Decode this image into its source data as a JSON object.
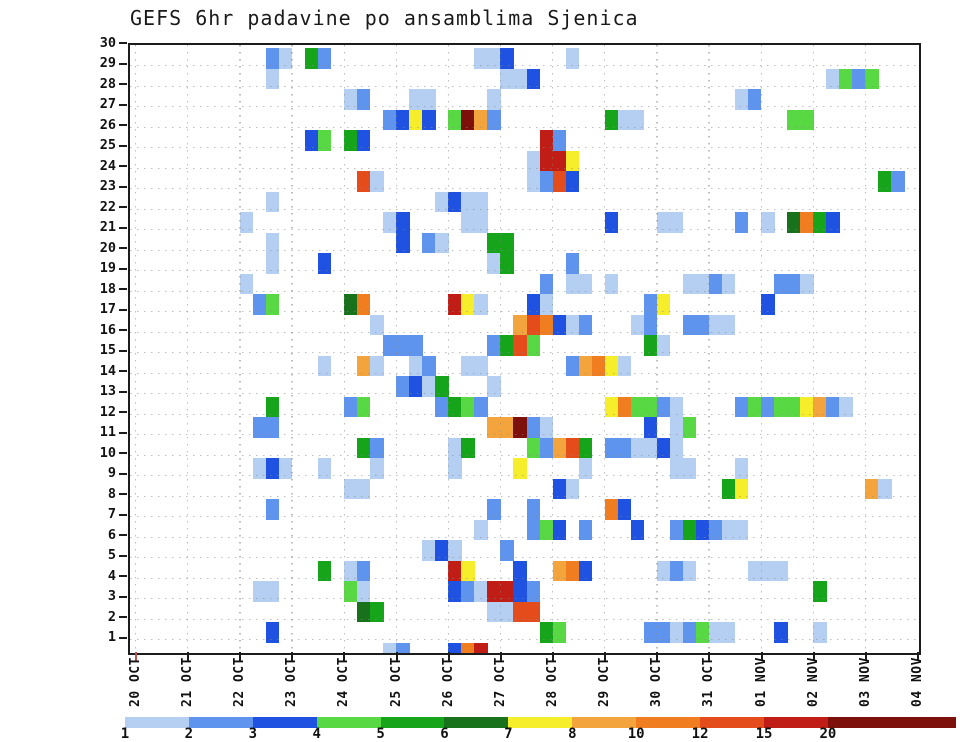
{
  "title": "GEFS 6hr padavine po ansamblima Sjenica",
  "chart_data": {
    "type": "heatmap",
    "title": "GEFS 6hr padavine po ansamblima Sjenica",
    "x_axis": {
      "tick_labels": [
        "20 OCT",
        "21 OCT",
        "22 OCT",
        "23 OCT",
        "24 OCT",
        "25 OCT",
        "26 OCT",
        "27 OCT",
        "28 OCT",
        "29 OCT",
        "30 OCT",
        "31 OCT",
        "01 NOV",
        "02 NOV",
        "03 NOV",
        "04 NOV"
      ],
      "steps_per_day": 4,
      "first_tick_color": "#c0504d",
      "tick_color": "#1c1c1c"
    },
    "y_axis": {
      "member_labels": [
        "30",
        "29",
        "28",
        "27",
        "26",
        "25",
        "24",
        "23",
        "22",
        "21",
        "20",
        "19",
        "18",
        "17",
        "16",
        "15",
        "14",
        "13",
        "12",
        "11",
        "10",
        "9",
        "8",
        "7",
        "6",
        "5",
        "4",
        "3",
        "2",
        "1"
      ]
    },
    "grid": true,
    "legend_position": "bottom",
    "colorbar": {
      "boundary_labels": [
        "1",
        "2",
        "3",
        "4",
        "5",
        "6",
        "7",
        "8",
        "10",
        "12",
        "15",
        "20"
      ],
      "segment_levels": [
        1,
        2,
        3,
        4,
        5,
        6,
        7,
        8,
        10,
        12,
        15,
        20
      ],
      "last_segment_wide": true
    },
    "level_colors": {
      "1": "#b4cff1",
      "2": "#5f94ee",
      "3": "#1f52e0",
      "4": "#58d943",
      "5": "#16a51a",
      "6": "#17721b",
      "7": "#f6ee2b",
      "8": "#f4a43c",
      "10": "#f07d20",
      "12": "#e44d1b",
      "15": "#c01d16",
      "20": "#7d100b"
    },
    "cells": [
      [
        30,
        10,
        2
      ],
      [
        30,
        11,
        1
      ],
      [
        30,
        13,
        5
      ],
      [
        30,
        14,
        2
      ],
      [
        30,
        26,
        1
      ],
      [
        30,
        27,
        1
      ],
      [
        30,
        28,
        3
      ],
      [
        30,
        33,
        1
      ],
      [
        29,
        10,
        1
      ],
      [
        29,
        28,
        1
      ],
      [
        29,
        29,
        1
      ],
      [
        29,
        30,
        3
      ],
      [
        29,
        53,
        1
      ],
      [
        29,
        54,
        4
      ],
      [
        29,
        55,
        2
      ],
      [
        29,
        56,
        4
      ],
      [
        28,
        16,
        1
      ],
      [
        28,
        17,
        2
      ],
      [
        28,
        21,
        1
      ],
      [
        28,
        22,
        1
      ],
      [
        28,
        27,
        1
      ],
      [
        28,
        46,
        1
      ],
      [
        28,
        47,
        2
      ],
      [
        27,
        19,
        2
      ],
      [
        27,
        20,
        3
      ],
      [
        27,
        21,
        7
      ],
      [
        27,
        22,
        3
      ],
      [
        27,
        24,
        4
      ],
      [
        27,
        25,
        20
      ],
      [
        27,
        26,
        8
      ],
      [
        27,
        27,
        2
      ],
      [
        27,
        36,
        5
      ],
      [
        27,
        37,
        1
      ],
      [
        27,
        38,
        1
      ],
      [
        27,
        50,
        4
      ],
      [
        27,
        51,
        4
      ],
      [
        26,
        13,
        3
      ],
      [
        26,
        14,
        4
      ],
      [
        26,
        16,
        5
      ],
      [
        26,
        17,
        3
      ],
      [
        26,
        31,
        15
      ],
      [
        26,
        32,
        2
      ],
      [
        25,
        30,
        1
      ],
      [
        25,
        31,
        15
      ],
      [
        25,
        32,
        15
      ],
      [
        25,
        33,
        7
      ],
      [
        24,
        17,
        12
      ],
      [
        24,
        18,
        1
      ],
      [
        24,
        30,
        1
      ],
      [
        24,
        31,
        2
      ],
      [
        24,
        32,
        12
      ],
      [
        24,
        33,
        3
      ],
      [
        24,
        57,
        5
      ],
      [
        24,
        58,
        2
      ],
      [
        23,
        10,
        1
      ],
      [
        23,
        23,
        1
      ],
      [
        23,
        24,
        3
      ],
      [
        23,
        25,
        1
      ],
      [
        23,
        26,
        1
      ],
      [
        22,
        8,
        1
      ],
      [
        22,
        19,
        1
      ],
      [
        22,
        20,
        3
      ],
      [
        22,
        25,
        1
      ],
      [
        22,
        26,
        1
      ],
      [
        22,
        36,
        3
      ],
      [
        22,
        40,
        1
      ],
      [
        22,
        41,
        1
      ],
      [
        22,
        46,
        2
      ],
      [
        22,
        48,
        1
      ],
      [
        22,
        50,
        6
      ],
      [
        22,
        51,
        10
      ],
      [
        22,
        52,
        5
      ],
      [
        22,
        53,
        3
      ],
      [
        21,
        10,
        1
      ],
      [
        21,
        20,
        3
      ],
      [
        21,
        22,
        2
      ],
      [
        21,
        23,
        1
      ],
      [
        21,
        27,
        5
      ],
      [
        21,
        28,
        5
      ],
      [
        20,
        10,
        1
      ],
      [
        20,
        14,
        3
      ],
      [
        20,
        27,
        1
      ],
      [
        20,
        28,
        5
      ],
      [
        20,
        33,
        2
      ],
      [
        19,
        8,
        1
      ],
      [
        19,
        31,
        2
      ],
      [
        19,
        33,
        1
      ],
      [
        19,
        34,
        1
      ],
      [
        19,
        36,
        1
      ],
      [
        19,
        42,
        1
      ],
      [
        19,
        43,
        1
      ],
      [
        19,
        44,
        2
      ],
      [
        19,
        45,
        1
      ],
      [
        19,
        49,
        2
      ],
      [
        19,
        50,
        2
      ],
      [
        19,
        51,
        1
      ],
      [
        18,
        9,
        2
      ],
      [
        18,
        10,
        4
      ],
      [
        18,
        16,
        6
      ],
      [
        18,
        17,
        10
      ],
      [
        18,
        24,
        15
      ],
      [
        18,
        25,
        7
      ],
      [
        18,
        26,
        1
      ],
      [
        18,
        30,
        3
      ],
      [
        18,
        31,
        1
      ],
      [
        18,
        39,
        2
      ],
      [
        18,
        40,
        7
      ],
      [
        18,
        48,
        3
      ],
      [
        17,
        18,
        1
      ],
      [
        17,
        29,
        8
      ],
      [
        17,
        30,
        12
      ],
      [
        17,
        31,
        10
      ],
      [
        17,
        32,
        3
      ],
      [
        17,
        33,
        1
      ],
      [
        17,
        34,
        2
      ],
      [
        17,
        38,
        1
      ],
      [
        17,
        39,
        2
      ],
      [
        17,
        42,
        2
      ],
      [
        17,
        43,
        2
      ],
      [
        17,
        44,
        1
      ],
      [
        17,
        45,
        1
      ],
      [
        16,
        19,
        2
      ],
      [
        16,
        20,
        2
      ],
      [
        16,
        21,
        2
      ],
      [
        16,
        27,
        2
      ],
      [
        16,
        28,
        5
      ],
      [
        16,
        29,
        12
      ],
      [
        16,
        30,
        4
      ],
      [
        16,
        39,
        5
      ],
      [
        16,
        40,
        1
      ],
      [
        15,
        14,
        1
      ],
      [
        15,
        17,
        8
      ],
      [
        15,
        18,
        1
      ],
      [
        15,
        21,
        1
      ],
      [
        15,
        22,
        2
      ],
      [
        15,
        25,
        1
      ],
      [
        15,
        26,
        1
      ],
      [
        15,
        33,
        2
      ],
      [
        15,
        34,
        8
      ],
      [
        15,
        35,
        10
      ],
      [
        15,
        36,
        7
      ],
      [
        15,
        37,
        1
      ],
      [
        14,
        20,
        2
      ],
      [
        14,
        21,
        3
      ],
      [
        14,
        22,
        1
      ],
      [
        14,
        23,
        5
      ],
      [
        14,
        27,
        1
      ],
      [
        13,
        10,
        5
      ],
      [
        13,
        16,
        2
      ],
      [
        13,
        17,
        4
      ],
      [
        13,
        23,
        2
      ],
      [
        13,
        24,
        5
      ],
      [
        13,
        25,
        4
      ],
      [
        13,
        26,
        2
      ],
      [
        13,
        36,
        7
      ],
      [
        13,
        37,
        10
      ],
      [
        13,
        38,
        4
      ],
      [
        13,
        39,
        4
      ],
      [
        13,
        40,
        2
      ],
      [
        13,
        41,
        1
      ],
      [
        13,
        46,
        2
      ],
      [
        13,
        47,
        4
      ],
      [
        13,
        48,
        2
      ],
      [
        13,
        49,
        4
      ],
      [
        13,
        50,
        4
      ],
      [
        13,
        51,
        7
      ],
      [
        13,
        52,
        8
      ],
      [
        13,
        53,
        2
      ],
      [
        13,
        54,
        1
      ],
      [
        12,
        9,
        2
      ],
      [
        12,
        10,
        2
      ],
      [
        12,
        27,
        8
      ],
      [
        12,
        28,
        8
      ],
      [
        12,
        29,
        20
      ],
      [
        12,
        30,
        2
      ],
      [
        12,
        31,
        1
      ],
      [
        12,
        39,
        3
      ],
      [
        12,
        41,
        1
      ],
      [
        12,
        42,
        4
      ],
      [
        11,
        17,
        5
      ],
      [
        11,
        18,
        2
      ],
      [
        11,
        24,
        1
      ],
      [
        11,
        25,
        5
      ],
      [
        11,
        30,
        4
      ],
      [
        11,
        31,
        2
      ],
      [
        11,
        32,
        8
      ],
      [
        11,
        33,
        12
      ],
      [
        11,
        34,
        5
      ],
      [
        11,
        36,
        2
      ],
      [
        11,
        37,
        2
      ],
      [
        11,
        38,
        1
      ],
      [
        11,
        39,
        1
      ],
      [
        11,
        40,
        3
      ],
      [
        11,
        41,
        1
      ],
      [
        10,
        9,
        1
      ],
      [
        10,
        10,
        3
      ],
      [
        10,
        11,
        1
      ],
      [
        10,
        14,
        1
      ],
      [
        10,
        18,
        1
      ],
      [
        10,
        24,
        1
      ],
      [
        10,
        29,
        7
      ],
      [
        10,
        34,
        1
      ],
      [
        10,
        41,
        1
      ],
      [
        10,
        42,
        1
      ],
      [
        10,
        46,
        1
      ],
      [
        9,
        16,
        1
      ],
      [
        9,
        17,
        1
      ],
      [
        9,
        32,
        3
      ],
      [
        9,
        33,
        1
      ],
      [
        9,
        45,
        5
      ],
      [
        9,
        46,
        7
      ],
      [
        9,
        56,
        8
      ],
      [
        9,
        57,
        1
      ],
      [
        8,
        10,
        2
      ],
      [
        8,
        27,
        2
      ],
      [
        8,
        30,
        2
      ],
      [
        8,
        36,
        10
      ],
      [
        8,
        37,
        3
      ],
      [
        7,
        26,
        1
      ],
      [
        7,
        30,
        2
      ],
      [
        7,
        31,
        4
      ],
      [
        7,
        32,
        3
      ],
      [
        7,
        34,
        2
      ],
      [
        7,
        38,
        3
      ],
      [
        7,
        41,
        2
      ],
      [
        7,
        42,
        5
      ],
      [
        7,
        43,
        3
      ],
      [
        7,
        44,
        2
      ],
      [
        7,
        45,
        1
      ],
      [
        7,
        46,
        1
      ],
      [
        6,
        22,
        1
      ],
      [
        6,
        23,
        3
      ],
      [
        6,
        24,
        1
      ],
      [
        6,
        28,
        2
      ],
      [
        5,
        14,
        5
      ],
      [
        5,
        16,
        1
      ],
      [
        5,
        17,
        2
      ],
      [
        5,
        24,
        15
      ],
      [
        5,
        25,
        7
      ],
      [
        5,
        29,
        3
      ],
      [
        5,
        32,
        8
      ],
      [
        5,
        33,
        10
      ],
      [
        5,
        34,
        3
      ],
      [
        5,
        40,
        1
      ],
      [
        5,
        41,
        2
      ],
      [
        5,
        42,
        1
      ],
      [
        5,
        47,
        1
      ],
      [
        5,
        48,
        1
      ],
      [
        5,
        49,
        1
      ],
      [
        4,
        9,
        1
      ],
      [
        4,
        10,
        1
      ],
      [
        4,
        16,
        4
      ],
      [
        4,
        17,
        1
      ],
      [
        4,
        24,
        3
      ],
      [
        4,
        25,
        2
      ],
      [
        4,
        26,
        1
      ],
      [
        4,
        27,
        15
      ],
      [
        4,
        28,
        15
      ],
      [
        4,
        29,
        3
      ],
      [
        4,
        30,
        2
      ],
      [
        4,
        52,
        5
      ],
      [
        3,
        17,
        6
      ],
      [
        3,
        18,
        5
      ],
      [
        3,
        27,
        1
      ],
      [
        3,
        28,
        1
      ],
      [
        3,
        29,
        12
      ],
      [
        3,
        30,
        12
      ],
      [
        2,
        10,
        3
      ],
      [
        2,
        31,
        5
      ],
      [
        2,
        32,
        4
      ],
      [
        2,
        39,
        2
      ],
      [
        2,
        40,
        2
      ],
      [
        2,
        41,
        1
      ],
      [
        2,
        42,
        2
      ],
      [
        2,
        43,
        4
      ],
      [
        2,
        44,
        1
      ],
      [
        2,
        45,
        1
      ],
      [
        2,
        49,
        3
      ],
      [
        2,
        52,
        1
      ],
      [
        1,
        19,
        1
      ],
      [
        1,
        20,
        2
      ],
      [
        1,
        24,
        3
      ],
      [
        1,
        25,
        10
      ],
      [
        1,
        26,
        15
      ]
    ]
  }
}
